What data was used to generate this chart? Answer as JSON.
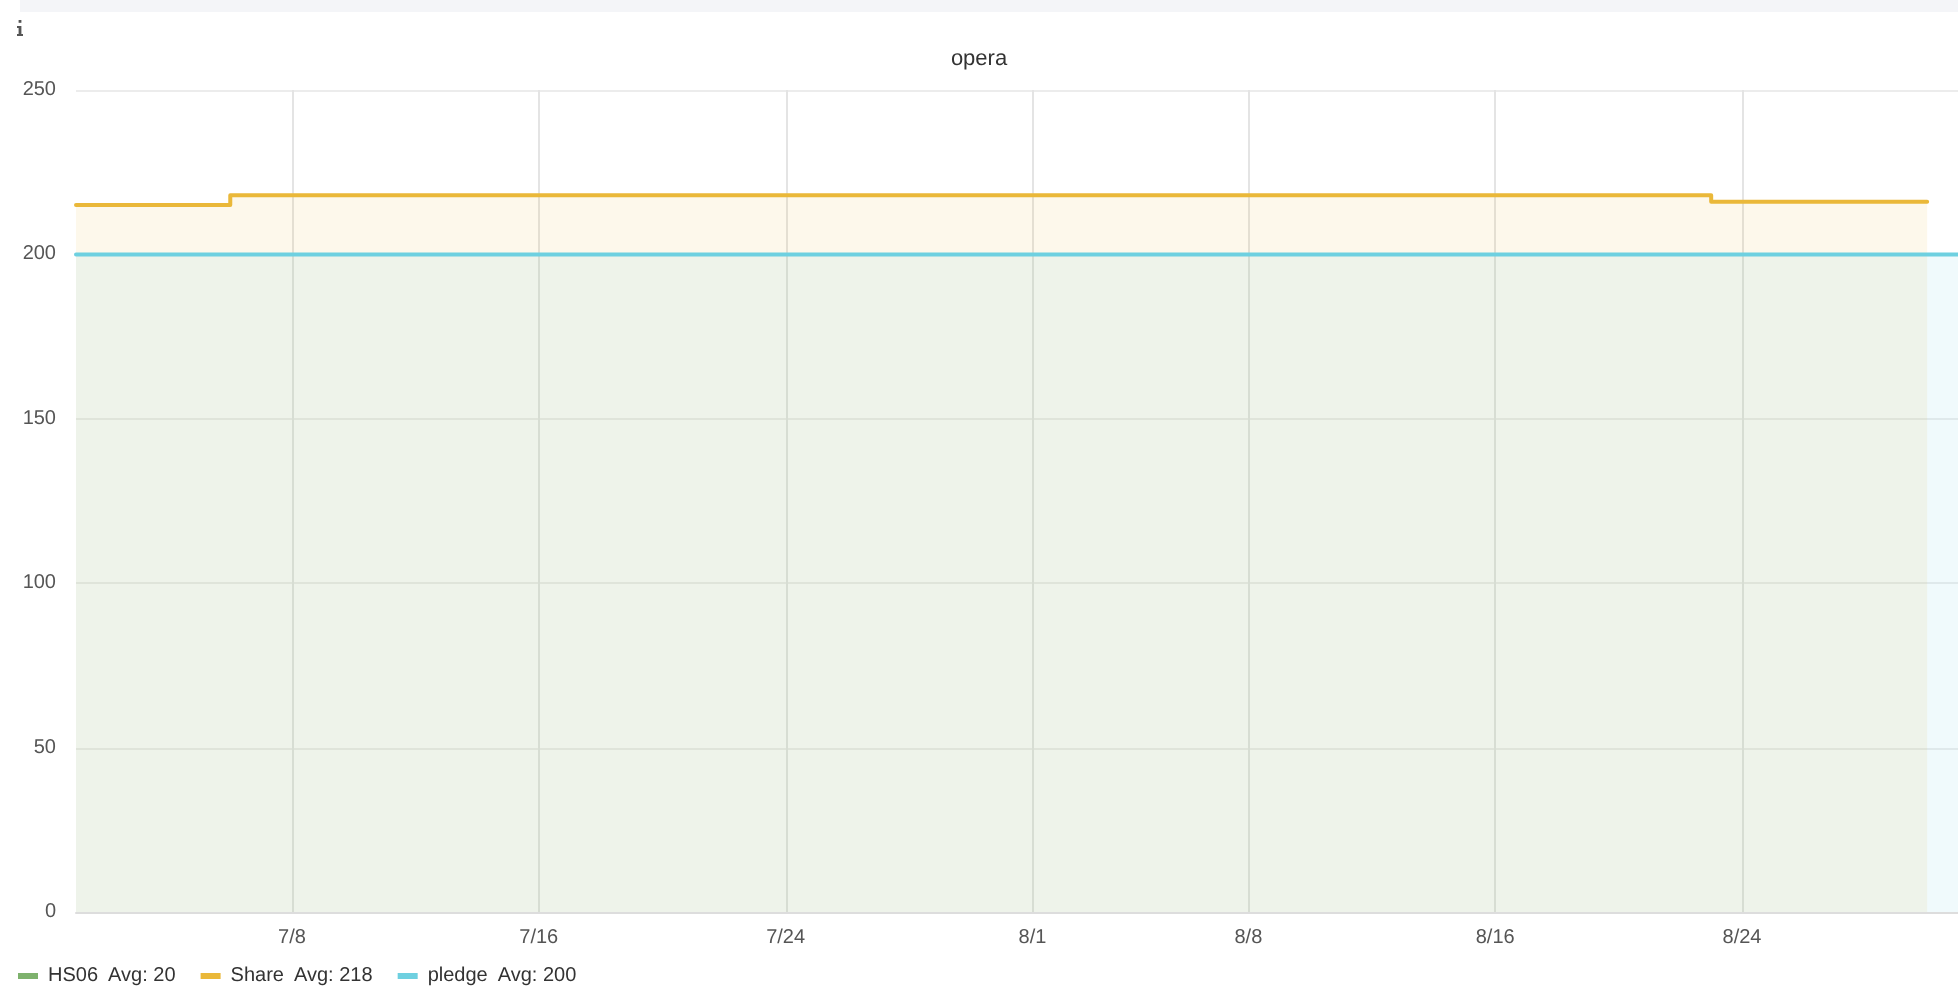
{
  "chart_data": {
    "type": "line",
    "title": "opera",
    "series": [
      {
        "name": "HS06  Avg: 20",
        "color": "#7eb26d"
      },
      {
        "name": "Share  Avg: 218",
        "type": "area",
        "color": "#eab839",
        "x": [
          "--07-01",
          "--07-06",
          "--07-06",
          "--08-23",
          "--08-23",
          "--08-30"
        ],
        "values": [
          215,
          215,
          218,
          218,
          216,
          216
        ]
      },
      {
        "name": "pledge  Avg: 200",
        "type": "area",
        "color": "#6ed0e0",
        "x": [
          "--07-01",
          "--08-31"
        ],
        "values": [
          200,
          200
        ]
      }
    ],
    "xlim": [
      "--07-01",
      "--08-31"
    ],
    "xticks": [
      {
        "value": "--07-08",
        "label": "7/8"
      },
      {
        "value": "--07-16",
        "label": "7/16"
      },
      {
        "value": "--07-24",
        "label": "7/24"
      },
      {
        "value": "--08-01",
        "label": "8/1"
      },
      {
        "value": "--08-08",
        "label": "8/8"
      },
      {
        "value": "--08-16",
        "label": "8/16"
      },
      {
        "value": "--08-24",
        "label": "8/24"
      }
    ],
    "ylim": [
      0,
      250
    ],
    "yticks": [
      0,
      50,
      100,
      150,
      200,
      250
    ],
    "grid": true,
    "legend": "bottom left"
  }
}
